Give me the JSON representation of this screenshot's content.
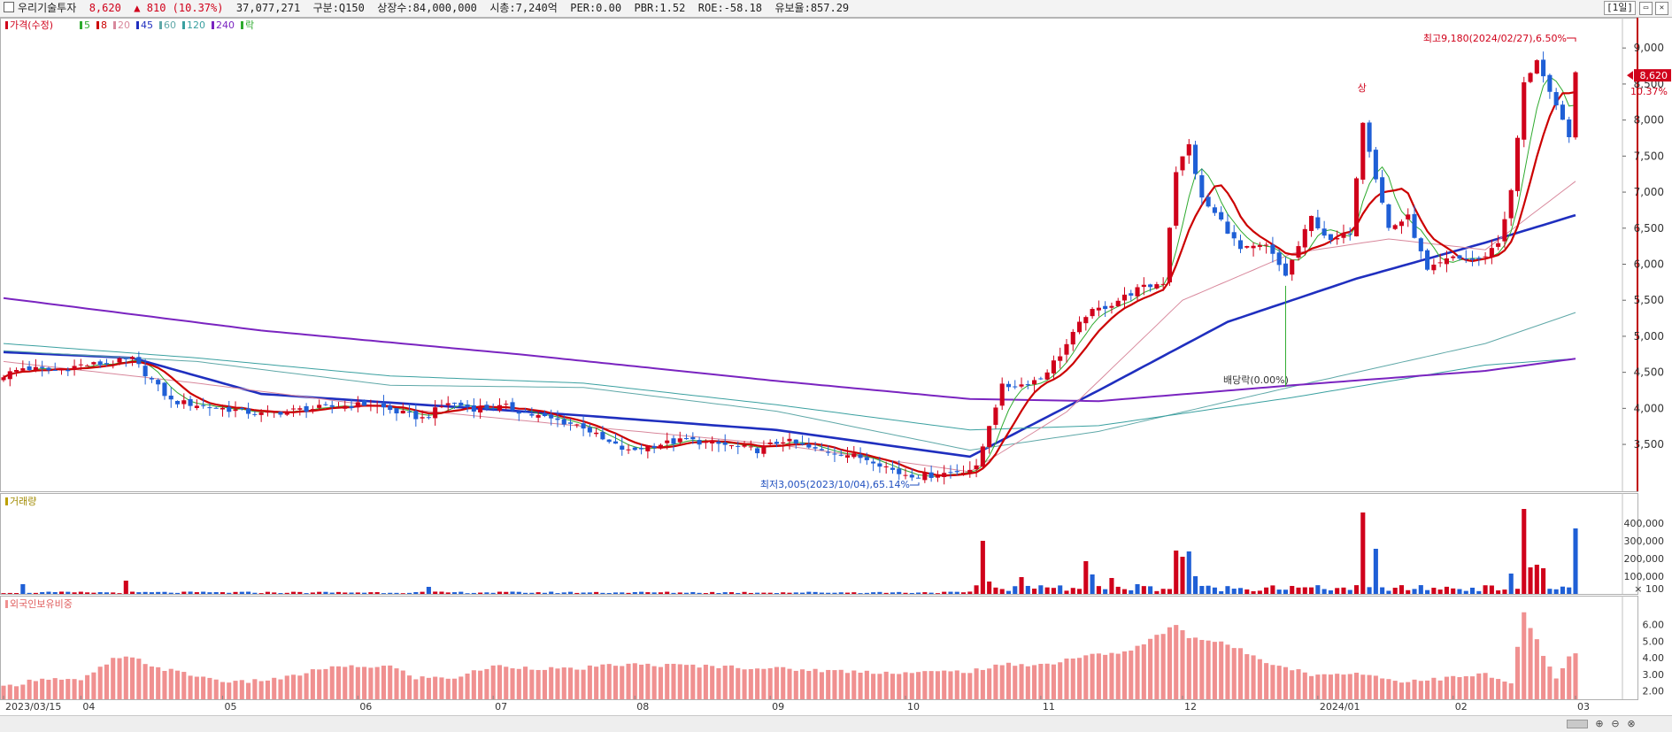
{
  "header": {
    "stock_name": "우리기술투자",
    "price": "8,620",
    "change_arrow": "▲",
    "change": "810",
    "change_pct": "(10.37%)",
    "volume": "37,077,271",
    "market": "구분:Q150",
    "shares": "상장수:84,000,000",
    "market_cap": "시총:7,240억",
    "per": "PER:0.00",
    "pbr": "PBR:1.52",
    "roe": "ROE:-58.18",
    "float": "유보율:857.29",
    "period_label": "[1일]",
    "minimize_icon": "minimize-icon",
    "close_icon": "close-icon"
  },
  "colors": {
    "up": "#d0021b",
    "down": "#1f5fd6",
    "ma5": "#2eaa2e",
    "ma8": "#cc0000",
    "ma20": "#d8889c",
    "ma45": "#1f2fbf",
    "ma60": "#5fa8a8",
    "ma120": "#3aa0a0",
    "ma240": "#7a24c0",
    "foreign": "#f09090"
  },
  "chart_data": [
    {
      "type": "candlestick",
      "panel": "price",
      "legend": [
        {
          "label": "가격(수정)",
          "color": "#d0021b"
        },
        {
          "label": "5",
          "color": "#2eaa2e"
        },
        {
          "label": "8",
          "color": "#cc0000"
        },
        {
          "label": "20",
          "color": "#d8889c"
        },
        {
          "label": "45",
          "color": "#1f2fbf"
        },
        {
          "label": "60",
          "color": "#5fa8a8"
        },
        {
          "label": "120",
          "color": "#3aa0a0"
        },
        {
          "label": "240",
          "color": "#7a24c0"
        },
        {
          "label": "락",
          "color": "#2eaa2e"
        }
      ],
      "y_ticks": [
        "9,000",
        "8,500",
        "8,000",
        "7,500",
        "7,000",
        "6,500",
        "6,000",
        "5,500",
        "5,000",
        "4,500",
        "4,000",
        "3,500"
      ],
      "y_tick_values": [
        9000,
        8500,
        8000,
        7500,
        7000,
        6500,
        6000,
        5500,
        5000,
        4500,
        4000,
        3500
      ],
      "ylim": [
        2850,
        9420
      ],
      "x_ticks": [
        "2023/03/15",
        "04",
        "05",
        "06",
        "07",
        "08",
        "09",
        "10",
        "11",
        "12",
        "2024/01",
        "02",
        "03"
      ],
      "x_tick_index": [
        0,
        12,
        34,
        55,
        76,
        98,
        119,
        140,
        161,
        183,
        204,
        225,
        244
      ],
      "current_price": "8,620",
      "current_price_value": 8620,
      "current_change": "10.37%",
      "annotations": {
        "high": "최고9,180(2024/02/27),6.50%",
        "low": "최저3,005(2023/10/04),65.14%",
        "dividend": "배당락(0.00%)",
        "upper_limit": "상"
      },
      "anchors": [
        [
          0,
          4460
        ],
        [
          3,
          4560
        ],
        [
          8,
          4520
        ],
        [
          12,
          4600
        ],
        [
          16,
          4620
        ],
        [
          20,
          4680
        ],
        [
          26,
          4100
        ],
        [
          34,
          4000
        ],
        [
          40,
          3920
        ],
        [
          46,
          3980
        ],
        [
          52,
          4030
        ],
        [
          57,
          4060
        ],
        [
          61,
          3950
        ],
        [
          65,
          3860
        ],
        [
          69,
          4080
        ],
        [
          73,
          4000
        ],
        [
          78,
          4020
        ],
        [
          82,
          3910
        ],
        [
          85,
          3850
        ],
        [
          90,
          3750
        ],
        [
          93,
          3560
        ],
        [
          97,
          3400
        ],
        [
          100,
          3480
        ],
        [
          106,
          3560
        ],
        [
          112,
          3490
        ],
        [
          117,
          3420
        ],
        [
          121,
          3560
        ],
        [
          126,
          3420
        ],
        [
          130,
          3380
        ],
        [
          135,
          3280
        ],
        [
          139,
          3100
        ],
        [
          143,
          3060
        ],
        [
          148,
          3130
        ],
        [
          151,
          3170
        ],
        [
          153,
          3780
        ],
        [
          155,
          4300
        ],
        [
          158,
          4330
        ],
        [
          161,
          4420
        ],
        [
          164,
          4750
        ],
        [
          168,
          5300
        ],
        [
          172,
          5450
        ],
        [
          176,
          5650
        ],
        [
          180,
          5750
        ],
        [
          182,
          7300
        ],
        [
          184,
          7650
        ],
        [
          186,
          6900
        ],
        [
          189,
          6600
        ],
        [
          192,
          6200
        ],
        [
          196,
          6250
        ],
        [
          199,
          5850
        ],
        [
          203,
          6650
        ],
        [
          206,
          6300
        ],
        [
          209,
          6450
        ],
        [
          211,
          8000
        ],
        [
          213,
          7200
        ],
        [
          215,
          6500
        ],
        [
          218,
          6650
        ],
        [
          221,
          5900
        ],
        [
          225,
          6100
        ],
        [
          229,
          6050
        ],
        [
          232,
          6300
        ],
        [
          234,
          7000
        ],
        [
          236,
          8500
        ],
        [
          238,
          8850
        ],
        [
          240,
          8350
        ],
        [
          243,
          7800
        ],
        [
          244,
          8620
        ]
      ],
      "moving_averages": [
        {
          "name": "45",
          "points": [
            [
              0,
              4780
            ],
            [
              20,
              4700
            ],
            [
              40,
              4200
            ],
            [
              60,
              4080
            ],
            [
              90,
              3900
            ],
            [
              120,
              3700
            ],
            [
              150,
              3330
            ],
            [
              170,
              4250
            ],
            [
              190,
              5200
            ],
            [
              210,
              5800
            ],
            [
              230,
              6300
            ],
            [
              244,
              6680
            ]
          ]
        },
        {
          "name": "60",
          "points": [
            [
              0,
              4800
            ],
            [
              30,
              4650
            ],
            [
              60,
              4320
            ],
            [
              90,
              4290
            ],
            [
              120,
              3960
            ],
            [
              150,
              3420
            ],
            [
              170,
              3680
            ],
            [
              200,
              4300
            ],
            [
              230,
              4900
            ],
            [
              244,
              5330
            ]
          ]
        },
        {
          "name": "120",
          "points": [
            [
              0,
              4900
            ],
            [
              30,
              4700
            ],
            [
              60,
              4450
            ],
            [
              90,
              4350
            ],
            [
              120,
              4050
            ],
            [
              150,
              3700
            ],
            [
              170,
              3760
            ],
            [
              200,
              4150
            ],
            [
              230,
              4600
            ],
            [
              244,
              4690
            ]
          ]
        },
        {
          "name": "240",
          "points": [
            [
              0,
              5530
            ],
            [
              40,
              5080
            ],
            [
              80,
              4750
            ],
            [
              120,
              4380
            ],
            [
              150,
              4130
            ],
            [
              170,
              4100
            ],
            [
              200,
              4320
            ],
            [
              230,
              4520
            ],
            [
              244,
              4690
            ]
          ]
        },
        {
          "name": "20",
          "points": [
            [
              0,
              4650
            ],
            [
              30,
              4350
            ],
            [
              60,
              4010
            ],
            [
              90,
              3750
            ],
            [
              120,
              3500
            ],
            [
              150,
              3120
            ],
            [
              165,
              3950
            ],
            [
              183,
              5500
            ],
            [
              200,
              6150
            ],
            [
              215,
              6350
            ],
            [
              230,
              6200
            ],
            [
              244,
              7150
            ]
          ]
        }
      ]
    },
    {
      "type": "bar",
      "panel": "volume",
      "legend": "거래량",
      "y_ticks": [
        "400,000",
        "300,000",
        "200,000",
        "100,000",
        "× 100"
      ],
      "y_tick_values": [
        400000,
        300000,
        200000,
        100000
      ],
      "ylim": [
        0,
        500000
      ],
      "spikes": [
        [
          3,
          55000,
          "down"
        ],
        [
          19,
          75000,
          "up"
        ],
        [
          66,
          40000,
          "down"
        ],
        [
          152,
          300000,
          "up"
        ],
        [
          153,
          70000,
          "up"
        ],
        [
          158,
          95000,
          "up"
        ],
        [
          164,
          48000,
          "down"
        ],
        [
          168,
          185000,
          "up"
        ],
        [
          169,
          110000,
          "down"
        ],
        [
          172,
          90000,
          "up"
        ],
        [
          176,
          55000,
          "down"
        ],
        [
          182,
          245000,
          "up"
        ],
        [
          183,
          210000,
          "up"
        ],
        [
          184,
          240000,
          "down"
        ],
        [
          185,
          100000,
          "down"
        ],
        [
          197,
          48000,
          "up"
        ],
        [
          211,
          460000,
          "up"
        ],
        [
          213,
          255000,
          "down"
        ],
        [
          234,
          115000,
          "down"
        ],
        [
          236,
          480000,
          "up"
        ],
        [
          237,
          150000,
          "up"
        ],
        [
          238,
          165000,
          "up"
        ],
        [
          239,
          145000,
          "up"
        ],
        [
          244,
          370000,
          "down"
        ]
      ]
    },
    {
      "type": "bar",
      "panel": "foreign",
      "legend": "외국인보유비중",
      "y_ticks": [
        "6.00",
        "5.00",
        "4.00",
        "3.00",
        "2.00"
      ],
      "y_tick_values": [
        6.0,
        5.0,
        4.0,
        3.0,
        2.0
      ],
      "ylim": [
        1.5,
        7.0
      ],
      "anchors": [
        [
          0,
          2.2
        ],
        [
          6,
          2.8
        ],
        [
          12,
          2.6
        ],
        [
          17,
          3.9
        ],
        [
          20,
          4.0
        ],
        [
          24,
          3.4
        ],
        [
          30,
          2.9
        ],
        [
          36,
          2.5
        ],
        [
          44,
          2.8
        ],
        [
          50,
          3.4
        ],
        [
          60,
          3.5
        ],
        [
          64,
          2.8
        ],
        [
          70,
          2.8
        ],
        [
          76,
          3.5
        ],
        [
          88,
          3.3
        ],
        [
          96,
          3.6
        ],
        [
          110,
          3.5
        ],
        [
          130,
          3.2
        ],
        [
          140,
          3.1
        ],
        [
          150,
          3.2
        ],
        [
          156,
          3.6
        ],
        [
          162,
          3.6
        ],
        [
          166,
          4.0
        ],
        [
          170,
          4.2
        ],
        [
          175,
          4.4
        ],
        [
          182,
          6.0
        ],
        [
          184,
          5.3
        ],
        [
          190,
          4.8
        ],
        [
          196,
          3.8
        ],
        [
          204,
          2.9
        ],
        [
          208,
          3.1
        ],
        [
          212,
          3.0
        ],
        [
          216,
          2.6
        ],
        [
          222,
          2.7
        ],
        [
          230,
          3.0
        ],
        [
          234,
          2.4
        ],
        [
          236,
          6.8
        ],
        [
          237,
          5.8
        ],
        [
          239,
          4.2
        ],
        [
          241,
          2.7
        ],
        [
          243,
          4.0
        ],
        [
          244,
          4.2
        ]
      ]
    }
  ],
  "footer": {
    "zoom_in_icon": "zoom-in-icon",
    "zoom_out_icon": "zoom-out-icon",
    "zoom_reset_icon": "zoom-reset-icon"
  }
}
